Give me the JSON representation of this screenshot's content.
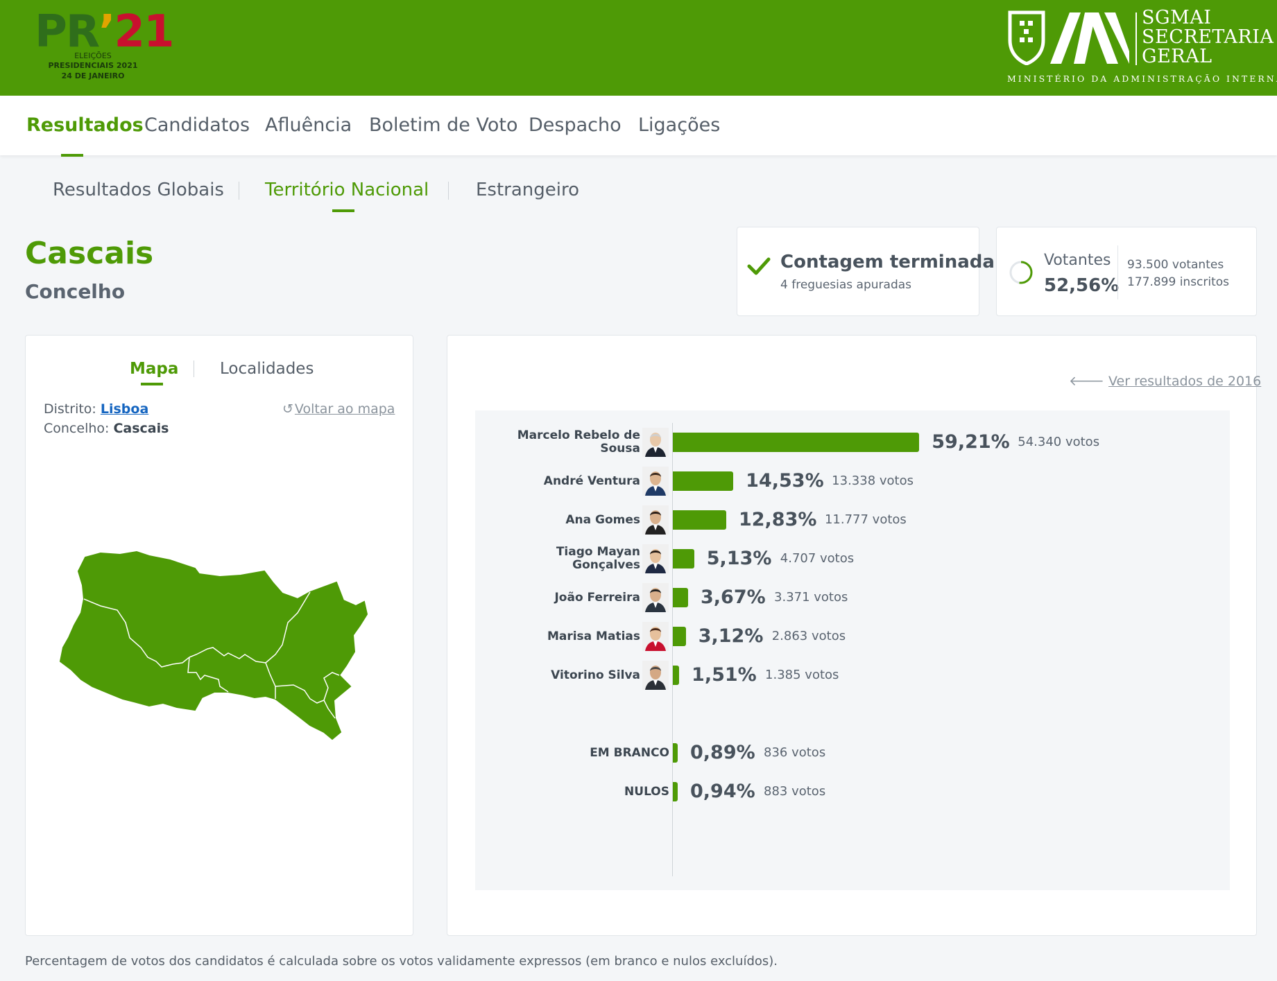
{
  "header": {
    "logo": {
      "mark": "PR",
      "apostrophe": "’",
      "year": "21",
      "line1": "ELEIÇÕES",
      "line2": "PRESIDENCIAIS 2021",
      "line3": "24 DE JANEIRO"
    },
    "org": {
      "line1": "SGMAI",
      "line2": "SECRETARIA",
      "line3": "GERAL",
      "ministry": "MINISTÉRIO DA ADMINISTRAÇÃO INTERNA"
    },
    "colors": {
      "brand_green": "#4e9a06",
      "logo_red": "#c8102e",
      "logo_dark_green": "#2f6e1b"
    }
  },
  "main_nav": {
    "items": [
      "Resultados",
      "Candidatos",
      "Afluência",
      "Boletim de Voto",
      "Despacho",
      "Ligações"
    ],
    "active": "Resultados"
  },
  "sub_nav": {
    "items": [
      "Resultados Globais",
      "Território Nacional",
      "Estrangeiro"
    ],
    "active": "Território Nacional"
  },
  "location": {
    "name": "Cascais",
    "type": "Concelho"
  },
  "status": {
    "title": "Contagem terminada",
    "subtitle": "4 freguesias apuradas",
    "icon": "check-icon"
  },
  "turnout": {
    "label": "Votantes",
    "percent": "52,56%",
    "percent_value": 52.56,
    "voters": "93.500 votantes",
    "registered": "177.899 inscritos"
  },
  "map_panel": {
    "tabs": [
      "Mapa",
      "Localidades"
    ],
    "active_tab": "Mapa",
    "district_label": "Distrito:",
    "district_value": "Lisboa",
    "municipality_label": "Concelho:",
    "municipality_value": "Cascais",
    "back_link": "Voltar ao mapa",
    "map_fill": "#4e9a06"
  },
  "results_panel": {
    "previous_link": "Ver resultados de 2016"
  },
  "chart_data": {
    "type": "bar",
    "orientation": "horizontal",
    "categories": [
      "Marcelo Rebelo de Sousa",
      "André Ventura",
      "Ana Gomes",
      "Tiago Mayan Gonçalves",
      "João Ferreira",
      "Marisa Matias",
      "Vitorino Silva",
      "EM BRANCO",
      "NULOS"
    ],
    "series": [
      {
        "values": [
          59.21,
          14.53,
          12.83,
          5.13,
          3.67,
          3.12,
          1.51,
          0.89,
          0.94
        ]
      }
    ],
    "value_labels": [
      "59,21%",
      "14,53%",
      "12,83%",
      "5,13%",
      "3,67%",
      "3,12%",
      "1,51%",
      "0,89%",
      "0,94%"
    ],
    "votes": [
      54340,
      13338,
      11777,
      4707,
      3371,
      2863,
      1385,
      836,
      883
    ],
    "vote_labels": [
      "54.340 votos",
      "13.338 votos",
      "11.777 votos",
      "4.707 votos",
      "3.371 votos",
      "2.863 votos",
      "1.385 votos",
      "836 votos",
      "883 votos"
    ],
    "name_lines": [
      [
        "Marcelo Rebelo de",
        "Sousa"
      ],
      [
        "André Ventura"
      ],
      [
        "Ana Gomes"
      ],
      [
        "Tiago Mayan",
        "Gonçalves"
      ],
      [
        "João Ferreira"
      ],
      [
        "Marisa Matias"
      ],
      [
        "Vitorino Silva"
      ],
      [
        "EM BRANCO"
      ],
      [
        "NULOS"
      ]
    ],
    "has_photo": [
      true,
      true,
      true,
      true,
      true,
      true,
      true,
      false,
      false
    ],
    "bar_color": "#4e9a06",
    "xlim": [
      0,
      100
    ],
    "grid": false
  },
  "footnote": "Percentagem de votos dos candidatos é calculada sobre os votos validamente expressos (em branco e nulos excluídos)."
}
